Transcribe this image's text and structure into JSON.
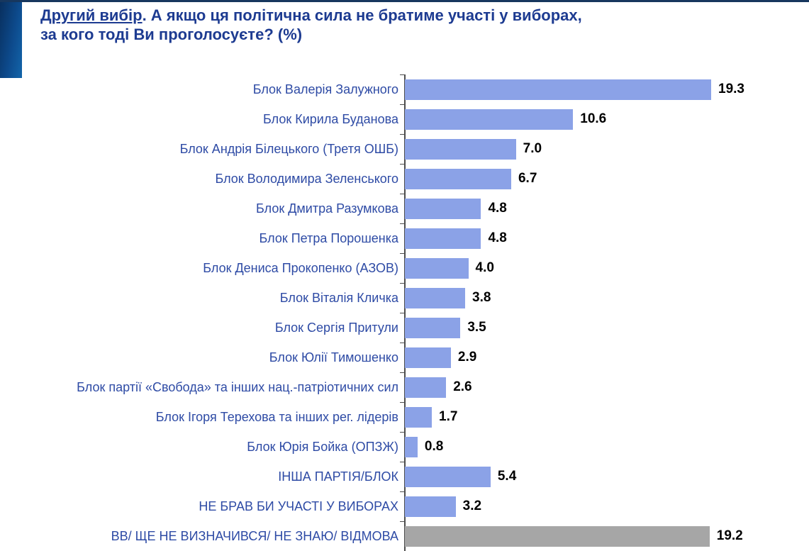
{
  "header": {
    "title_lead": "Другий вибір",
    "title_rest": ". А якщо ця політична сила не братиме участі у виборах,",
    "title_line2": "за кого тоді Ви проголосуєте? (%)"
  },
  "colors": {
    "top_line": "#17375e",
    "accent_left_dark": "#082f5e",
    "accent_left_light": "#1365aa",
    "title_text": "#1d3b91",
    "category_text": "#2e4ba5",
    "bar_blue": "#8ba2e7",
    "bar_gray": "#a6a6a6",
    "axis": "#4d4d4d",
    "value_text": "#000000"
  },
  "chart_data": {
    "type": "bar",
    "orientation": "horizontal",
    "title": "Другий вибір. А якщо ця політична сила не братиме участі у виборах, за кого тоді Ви проголосуєте? (%)",
    "unit": "%",
    "xlim": [
      0,
      20
    ],
    "grid": false,
    "legend": false,
    "value_label_position": "end-of-bar",
    "categories": [
      "Блок Валерія Залужного",
      "Блок Кирила Буданова",
      "Блок Андрія Білецького (Третя ОШБ)",
      "Блок Володимира Зеленського",
      "Блок Дмитра Разумкова",
      "Блок Петра Порошенка",
      "Блок Дениса Прокопенко (АЗОВ)",
      "Блок Віталія Кличка",
      "Блок Сергія Притули",
      "Блок Юлії Тимошенко",
      "Блок партії «Свобода» та інших нац.-патріотичних сил",
      "Блок Ігоря Терехова та інших рег. лідерів",
      "Блок Юрія Бойка (ОПЗЖ)",
      "ІНША ПАРТІЯ/БЛОК",
      "НЕ БРАВ БИ УЧАСТІ У ВИБОРАХ",
      "ВВ/ ЩЕ НЕ ВИЗНАЧИВСЯ/ НЕ ЗНАЮ/ ВІДМОВА"
    ],
    "values": [
      19.3,
      10.6,
      7.0,
      6.7,
      4.8,
      4.8,
      4.0,
      3.8,
      3.5,
      2.9,
      2.6,
      1.7,
      0.8,
      5.4,
      3.2,
      19.2
    ],
    "value_labels": [
      "19.3",
      "10.6",
      "7.0",
      "6.7",
      "4.8",
      "4.8",
      "4.0",
      "3.8",
      "3.5",
      "2.9",
      "2.6",
      "1.7",
      "0.8",
      "5.4",
      "3.2",
      "19.2"
    ],
    "bar_colors": [
      "#8ba2e7",
      "#8ba2e7",
      "#8ba2e7",
      "#8ba2e7",
      "#8ba2e7",
      "#8ba2e7",
      "#8ba2e7",
      "#8ba2e7",
      "#8ba2e7",
      "#8ba2e7",
      "#8ba2e7",
      "#8ba2e7",
      "#8ba2e7",
      "#8ba2e7",
      "#8ba2e7",
      "#a6a6a6"
    ]
  }
}
